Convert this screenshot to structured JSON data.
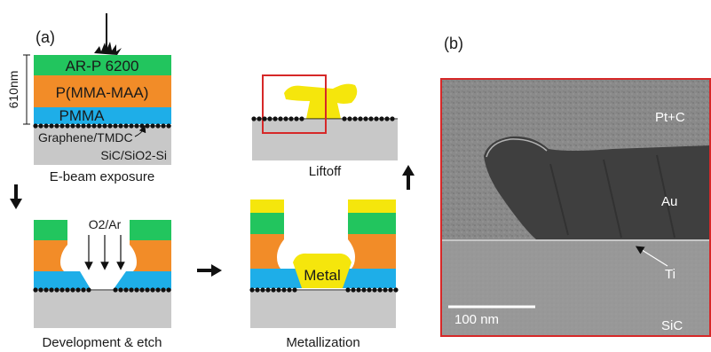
{
  "panel_a": {
    "label": "(a)",
    "thickness_label": "610nm",
    "layers": {
      "top": "AR-P 6200",
      "middle": "P(MMA-MAA)",
      "bottom": "PMMA",
      "graphene": "Graphene/TMDC",
      "substrate": "SiC/SiO2-Si"
    },
    "steps": {
      "ebeam": "E-beam exposure",
      "development": "Development & etch",
      "metallization": "Metallization",
      "liftoff": "Liftoff"
    },
    "etch_gas": "O2/Ar",
    "metal_label": "Metal"
  },
  "panel_b": {
    "label": "(b)",
    "labels": {
      "cap": "Pt+C",
      "metal": "Au",
      "adhesion": "Ti",
      "substrate": "SiC"
    },
    "scale_bar": "100 nm"
  },
  "colors": {
    "green": "#22c55e",
    "orange": "#f28c28",
    "blue": "#1eaee8",
    "yellow": "#f5e60c",
    "gray": "#c8c8c8",
    "frame_red": "#d62828"
  }
}
